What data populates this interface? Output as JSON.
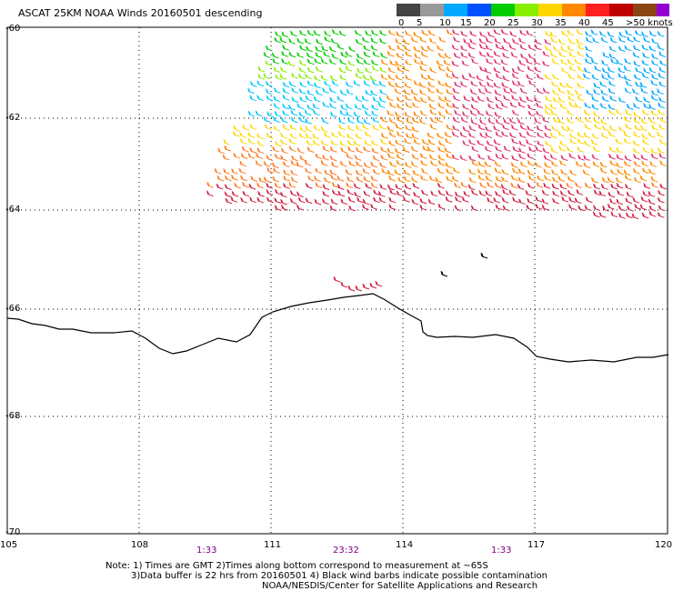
{
  "title": "ASCAT 25KM NOAA Winds 20160501 descending",
  "legend": {
    "labels": [
      "0",
      "5",
      "10",
      "15",
      "20",
      "25",
      "30",
      "35",
      "40",
      "45"
    ],
    "last_label": ">50 knots",
    "colors": [
      "#444444",
      "#9a9a9a",
      "#00a8ff",
      "#0050ff",
      "#00cc00",
      "#88ee00",
      "#ffd700",
      "#ff8800",
      "#ff2020",
      "#c00000",
      "#8b4513",
      "#ff00ff",
      "#9400d3",
      "#4b0082"
    ]
  },
  "axes": {
    "x_ticks": [
      "105",
      "108",
      "111",
      "114",
      "117",
      "120"
    ],
    "y_ticks": [
      "-60",
      "-62",
      "-64",
      "-66",
      "-68",
      "-70"
    ]
  },
  "times": [
    "1:33",
    "23:32",
    "1:33"
  ],
  "notes": {
    "line1": "Note: 1) Times are GMT 2)Times along bottom correspond to measurement at ~65S",
    "line2": "3)Data buffer is 22 hrs from 20160501 4) Black wind barbs indicate possible contamination",
    "line3": "NOAA/NESDIS/Center for Satellite Applications and Research"
  }
}
